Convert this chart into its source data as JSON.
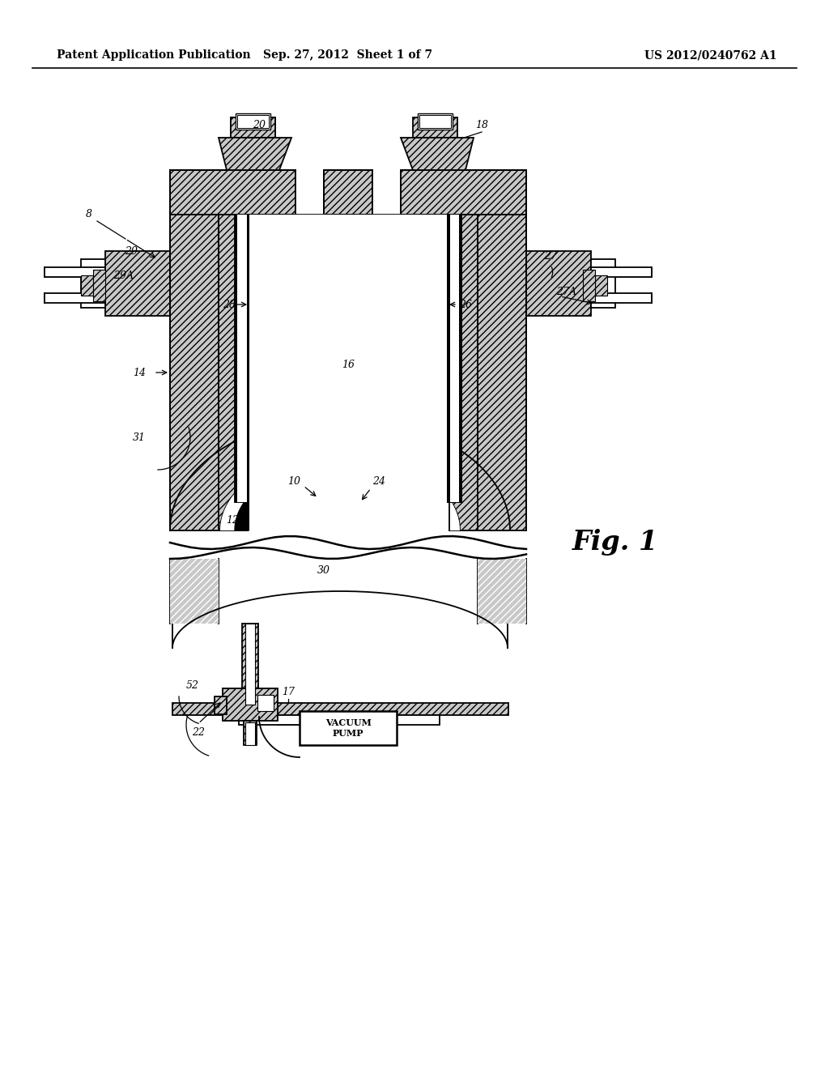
{
  "bg_color": "#ffffff",
  "header_left": "Patent Application Publication",
  "header_mid": "Sep. 27, 2012  Sheet 1 of 7",
  "header_right": "US 2012/0240762 A1",
  "fig_label": "Fig. 1",
  "hatch_fc": "#c8c8c8",
  "ec": "#000000",
  "lw": 1.3,
  "lw_thick": 2.5,
  "lw_membrane": 8.0
}
